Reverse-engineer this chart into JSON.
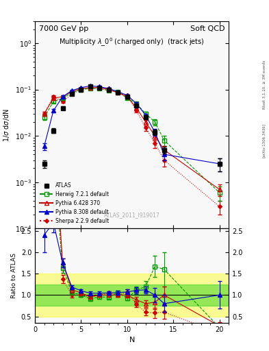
{
  "title_left": "7000 GeV pp",
  "title_right": "Soft QCD",
  "plot_title": "Multiplicity $\\lambda\\_0^0$ (charged only)  (track jets)",
  "ylabel_main": "1/$\\sigma$ d$\\sigma$/dN",
  "ylabel_ratio": "Ratio to ATLAS",
  "xlabel": "N",
  "watermark": "ATLAS_2011_I919017",
  "right_label": "Rivet 3.1.10, ≥ 3M events",
  "arxiv_label": "[arXiv:1306.3436]",
  "ATLAS_N": [
    1,
    2,
    3,
    4,
    5,
    6,
    7,
    8,
    9,
    10,
    11,
    12,
    13,
    14,
    20
  ],
  "ATLAS_y": [
    0.0025,
    0.013,
    0.04,
    0.08,
    0.1,
    0.115,
    0.11,
    0.1,
    0.085,
    0.07,
    0.045,
    0.025,
    0.012,
    0.005,
    0.0025
  ],
  "ATLAS_ey": [
    0.0005,
    0.0015,
    0.003,
    0.004,
    0.005,
    0.005,
    0.005,
    0.005,
    0.004,
    0.004,
    0.003,
    0.002,
    0.0015,
    0.0008,
    0.0008
  ],
  "Herwig_N": [
    1,
    2,
    3,
    4,
    5,
    6,
    7,
    8,
    9,
    10,
    11,
    12,
    13,
    14,
    20
  ],
  "Herwig_y": [
    0.025,
    0.055,
    0.065,
    0.085,
    0.1,
    0.105,
    0.105,
    0.095,
    0.09,
    0.065,
    0.05,
    0.03,
    0.02,
    0.008,
    0.0006
  ],
  "Herwig_ey": [
    0.003,
    0.004,
    0.004,
    0.004,
    0.004,
    0.004,
    0.004,
    0.004,
    0.004,
    0.004,
    0.004,
    0.003,
    0.003,
    0.002,
    0.0002
  ],
  "Pythia6_N": [
    1,
    2,
    3,
    4,
    5,
    6,
    7,
    8,
    9,
    10,
    11,
    12,
    13,
    14,
    20
  ],
  "Pythia6_y": [
    0.03,
    0.065,
    0.07,
    0.09,
    0.105,
    0.11,
    0.11,
    0.1,
    0.085,
    0.07,
    0.04,
    0.02,
    0.01,
    0.005,
    0.0007
  ],
  "Pythia6_ey": [
    0.003,
    0.004,
    0.004,
    0.004,
    0.004,
    0.004,
    0.004,
    0.004,
    0.004,
    0.004,
    0.003,
    0.002,
    0.002,
    0.001,
    0.0002
  ],
  "Pythia8_N": [
    1,
    2,
    3,
    4,
    5,
    6,
    7,
    8,
    9,
    10,
    11,
    12,
    13,
    14,
    20
  ],
  "Pythia8_y": [
    0.006,
    0.035,
    0.07,
    0.095,
    0.11,
    0.12,
    0.115,
    0.105,
    0.09,
    0.075,
    0.05,
    0.028,
    0.012,
    0.004,
    0.0025
  ],
  "Pythia8_ey": [
    0.001,
    0.003,
    0.004,
    0.004,
    0.004,
    0.004,
    0.004,
    0.004,
    0.004,
    0.004,
    0.003,
    0.002,
    0.002,
    0.001,
    0.0008
  ],
  "Sherpa_N": [
    1,
    2,
    3,
    4,
    5,
    6,
    7,
    8,
    9,
    10,
    11,
    12,
    13,
    14,
    20
  ],
  "Sherpa_y": [
    0.03,
    0.07,
    0.055,
    0.08,
    0.1,
    0.11,
    0.11,
    0.105,
    0.085,
    0.075,
    0.035,
    0.015,
    0.007,
    0.003,
    0.0003
  ],
  "Sherpa_ey": [
    0.003,
    0.004,
    0.004,
    0.004,
    0.004,
    0.004,
    0.004,
    0.004,
    0.004,
    0.004,
    0.003,
    0.002,
    0.0015,
    0.0008,
    0.0001
  ],
  "color_atlas": "#000000",
  "color_herwig": "#009900",
  "color_pythia6": "#cc0000",
  "color_pythia8": "#0000cc",
  "color_sherpa": "#cc0000",
  "bg_color": "#ffffff",
  "inner_bg": "#f8f8f8",
  "band_yellow": "#ffff00",
  "band_green": "#00cc00",
  "band_yellow_alpha": 0.4,
  "band_green_alpha": 0.4,
  "xlim": [
    0,
    21
  ],
  "ylim_main": [
    0.0001,
    3
  ],
  "ylim_ratio": [
    0.35,
    2.55
  ]
}
